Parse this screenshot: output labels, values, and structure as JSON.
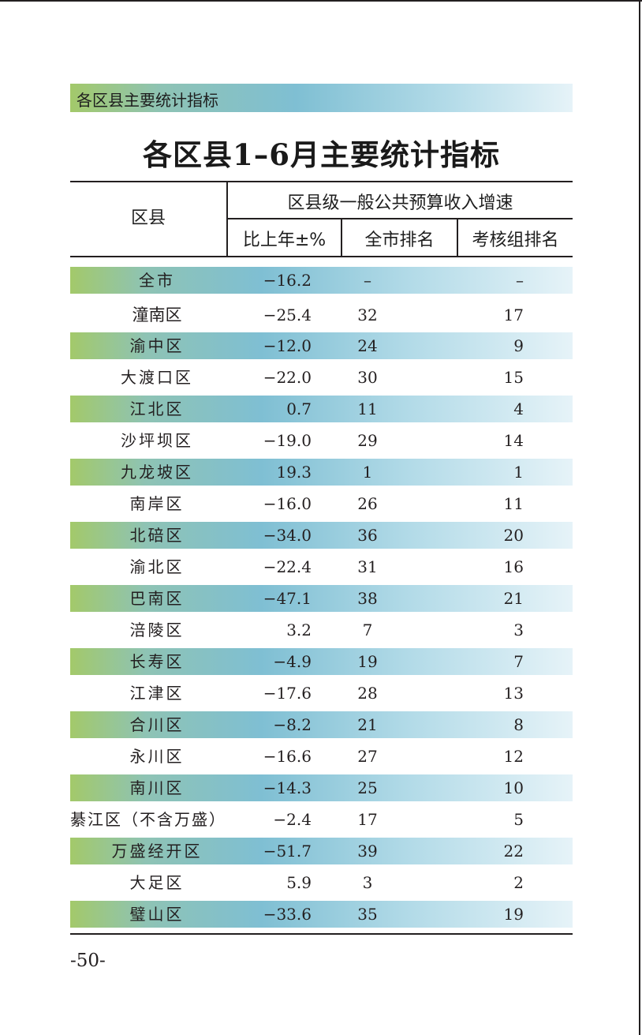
{
  "section": {
    "title": "各区县主要统计指标"
  },
  "table_title": "各区县1–6月主要统计指标",
  "headers": {
    "district": "区县",
    "group": "区县级一般公共预算收入增速",
    "growth": "比上年±%",
    "city_rank": "全市排名",
    "group_rank": "考核组排名"
  },
  "rows": [
    {
      "name": "全市",
      "growth": "−16.2",
      "city_rank": "–",
      "group_rank": "–"
    },
    {
      "name": "潼南区",
      "growth": "−25.4",
      "city_rank": "32",
      "group_rank": "17"
    },
    {
      "name": "渝中区",
      "growth": "−12.0",
      "city_rank": "24",
      "group_rank": "9"
    },
    {
      "name": "大渡口区",
      "growth": "−22.0",
      "city_rank": "30",
      "group_rank": "15"
    },
    {
      "name": "江北区",
      "growth": "0.7",
      "city_rank": "11",
      "group_rank": "4"
    },
    {
      "name": "沙坪坝区",
      "growth": "−19.0",
      "city_rank": "29",
      "group_rank": "14"
    },
    {
      "name": "九龙坡区",
      "growth": "19.3",
      "city_rank": "1",
      "group_rank": "1"
    },
    {
      "name": "南岸区",
      "growth": "−16.0",
      "city_rank": "26",
      "group_rank": "11"
    },
    {
      "name": "北碚区",
      "growth": "−34.0",
      "city_rank": "36",
      "group_rank": "20"
    },
    {
      "name": "渝北区",
      "growth": "−22.4",
      "city_rank": "31",
      "group_rank": "16"
    },
    {
      "name": "巴南区",
      "growth": "−47.1",
      "city_rank": "38",
      "group_rank": "21"
    },
    {
      "name": "涪陵区",
      "growth": "3.2",
      "city_rank": "7",
      "group_rank": "3"
    },
    {
      "name": "长寿区",
      "growth": "−4.9",
      "city_rank": "19",
      "group_rank": "7"
    },
    {
      "name": "江津区",
      "growth": "−17.6",
      "city_rank": "28",
      "group_rank": "13"
    },
    {
      "name": "合川区",
      "growth": "−8.2",
      "city_rank": "21",
      "group_rank": "8"
    },
    {
      "name": "永川区",
      "growth": "−16.6",
      "city_rank": "27",
      "group_rank": "12"
    },
    {
      "name": "南川区",
      "growth": "−14.3",
      "city_rank": "25",
      "group_rank": "10"
    },
    {
      "name": "綦江区（不含万盛）",
      "growth": "−2.4",
      "city_rank": "17",
      "group_rank": "5"
    },
    {
      "name": "万盛经开区",
      "growth": "−51.7",
      "city_rank": "39",
      "group_rank": "22"
    },
    {
      "name": "大足区",
      "growth": "5.9",
      "city_rank": "3",
      "group_rank": "2"
    },
    {
      "name": "璧山区",
      "growth": "−33.6",
      "city_rank": "35",
      "group_rank": "19"
    }
  ],
  "page_number": "-50-"
}
